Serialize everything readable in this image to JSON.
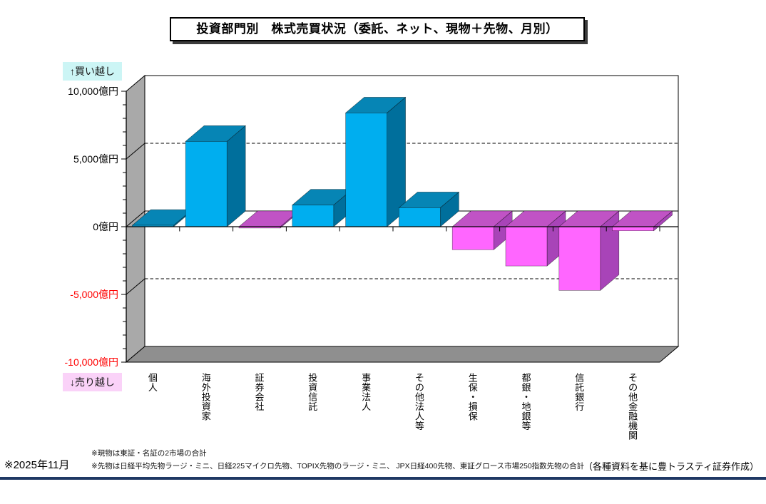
{
  "page": {
    "title": "投資部門別　株式売買状況（委託、ネット、現物＋先物、月別）",
    "annotation_buy": "↑買い越し",
    "annotation_sell": "↓売り越し",
    "footnote1": "※現物は東証・名証の2市場の合計",
    "footnote2": "※先物は日経平均先物ラージ・ミニ、日経225マイクロ先物、TOPIX先物のラージ・ミニ、 JPX日経400先物、東証グロース市場250指数先物の合計",
    "period_label": "※2025年11月",
    "credit": "（各種資料を基に豊トラスティ証券作成）",
    "colors": {
      "buy_note_bg": "#ccf5f5",
      "sell_note_bg": "#fad2f8",
      "bottom_rule": "#1f3864"
    }
  },
  "chart_data": {
    "type": "bar",
    "projection": "3d",
    "title": "投資部門別　株式売買状況（委託、ネット、現物＋先物、月別）",
    "unit": "億円",
    "categories": [
      "個人",
      "海外投資家",
      "証券会社",
      "投資信託",
      "事業法人",
      "その他法人等",
      "生保・損保",
      "都銀・地銀等",
      "信託銀行",
      "その他金融機関"
    ],
    "values": [
      100,
      6300,
      -100,
      1600,
      8400,
      1400,
      -1700,
      -2900,
      -4700,
      -300
    ],
    "ylim": [
      -10000,
      10000
    ],
    "ytick_interval": 5000,
    "minor_tick_interval": 1000,
    "grid": "dashed-major",
    "legend": "none",
    "yticks": [
      {
        "value": 10000,
        "label": "10,000億円"
      },
      {
        "value": 5000,
        "label": "5,000億円"
      },
      {
        "value": 0,
        "label": "0億円"
      },
      {
        "value": -5000,
        "label": "-5,000億円"
      },
      {
        "value": -10000,
        "label": "-10,000億円"
      }
    ],
    "style": {
      "positive": {
        "front": "#00AEEF",
        "top": "#0685B5",
        "side": "#006F9C"
      },
      "negative": {
        "front": "#FF66FF",
        "top": "#C053C5",
        "side": "#A844B8"
      },
      "wall": "#A9A9A9",
      "floor": "#8F8F8F",
      "negative_label_color": "#FF0000",
      "positive_label_color": "#000000"
    }
  }
}
